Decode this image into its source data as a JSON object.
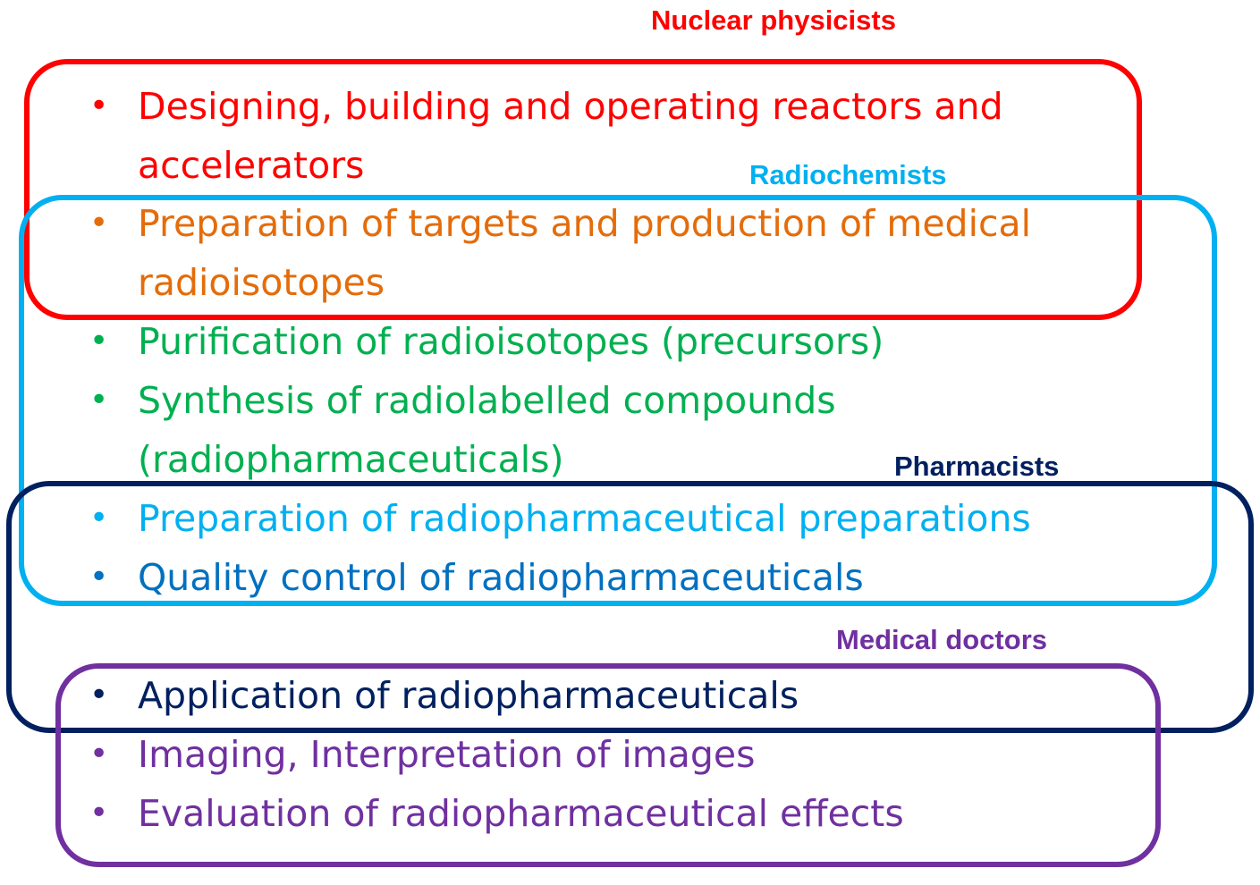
{
  "groups": {
    "nuclear": {
      "label": "Nuclear physicists",
      "color": "#ff0000"
    },
    "radiochem": {
      "label": "Radiochemists",
      "color": "#00b0f0"
    },
    "pharm": {
      "label": "Pharmacists",
      "color": "#002060"
    },
    "medical": {
      "label": "Medical doctors",
      "color": "#7030a0"
    }
  },
  "items": [
    {
      "lines": [
        "Designing, building and operating reactors and",
        "accelerators"
      ],
      "color": "#ff0000"
    },
    {
      "lines": [
        "Preparation of targets and production of medical",
        "radioisotopes"
      ],
      "color": "#e46c0a"
    },
    {
      "lines": [
        "Purification of radioisotopes (precursors)"
      ],
      "color": "#00b050"
    },
    {
      "lines": [
        "Synthesis of radiolabelled compounds",
        "(radiopharmaceuticals)"
      ],
      "color": "#00b050"
    },
    {
      "lines": [
        "Preparation of radiopharmaceutical preparations"
      ],
      "color": "#00b0f0"
    },
    {
      "lines": [
        "Quality control of radiopharmaceuticals"
      ],
      "color": "#0070c0"
    },
    {
      "lines": [
        "Application of radiopharmaceuticals"
      ],
      "color": "#002060"
    },
    {
      "lines": [
        "Imaging, Interpretation of images"
      ],
      "color": "#7030a0"
    },
    {
      "lines": [
        "Evaluation of radiopharmaceutical effects"
      ],
      "color": "#7030a0"
    }
  ],
  "bullet_char": "•"
}
